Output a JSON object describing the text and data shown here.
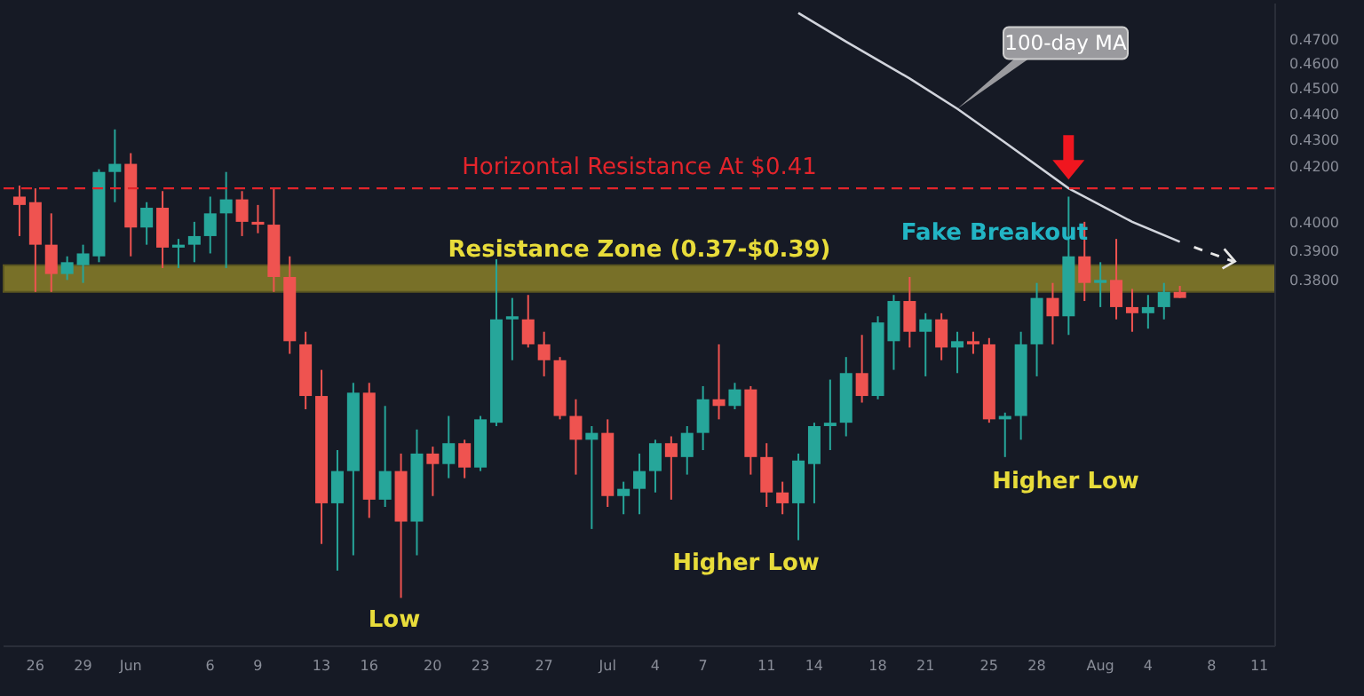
{
  "chart_data": {
    "type": "candlestick",
    "x": [
      "--05-25",
      "--05-26",
      "--05-27",
      "--05-28",
      "--05-29",
      "--05-30",
      "--05-31",
      "--06-01",
      "--06-02",
      "--06-03",
      "--06-04",
      "--06-05",
      "--06-06",
      "--06-07",
      "--06-08",
      "--06-09",
      "--06-10",
      "--06-11",
      "--06-12",
      "--06-13",
      "--06-14",
      "--06-15",
      "--06-16",
      "--06-17",
      "--06-18",
      "--06-19",
      "--06-20",
      "--06-21",
      "--06-22",
      "--06-23",
      "--06-24",
      "--06-25",
      "--06-26",
      "--06-27",
      "--06-28",
      "--06-29",
      "--06-30",
      "--07-01",
      "--07-02",
      "--07-03",
      "--07-04",
      "--07-05",
      "--07-06",
      "--07-07",
      "--07-08",
      "--07-09",
      "--07-10",
      "--07-11",
      "--07-12",
      "--07-13",
      "--07-14",
      "--07-15",
      "--07-16",
      "--07-17",
      "--07-18",
      "--07-19",
      "--07-20",
      "--07-21",
      "--07-22",
      "--07-23",
      "--07-24",
      "--07-25",
      "--07-26",
      "--07-27",
      "--07-28",
      "--07-29",
      "--07-30",
      "--07-31",
      "--08-01",
      "--08-02",
      "--08-03",
      "--08-04",
      "--08-05",
      "--08-06"
    ],
    "ohlc": [
      [
        0.409,
        0.413,
        0.395,
        0.406
      ],
      [
        0.407,
        0.412,
        0.376,
        0.392
      ],
      [
        0.392,
        0.403,
        0.376,
        0.382
      ],
      [
        0.382,
        0.388,
        0.38,
        0.386
      ],
      [
        0.385,
        0.392,
        0.379,
        0.389
      ],
      [
        0.388,
        0.419,
        0.386,
        0.418
      ],
      [
        0.418,
        0.434,
        0.407,
        0.421
      ],
      [
        0.421,
        0.425,
        0.388,
        0.398
      ],
      [
        0.398,
        0.407,
        0.392,
        0.405
      ],
      [
        0.405,
        0.411,
        0.384,
        0.391
      ],
      [
        0.391,
        0.394,
        0.384,
        0.392
      ],
      [
        0.392,
        0.4,
        0.386,
        0.395
      ],
      [
        0.395,
        0.409,
        0.389,
        0.403
      ],
      [
        0.403,
        0.418,
        0.384,
        0.408
      ],
      [
        0.408,
        0.411,
        0.395,
        0.4
      ],
      [
        0.4,
        0.406,
        0.396,
        0.399
      ],
      [
        0.399,
        0.412,
        0.376,
        0.381
      ],
      [
        0.381,
        0.388,
        0.356,
        0.36
      ],
      [
        0.359,
        0.363,
        0.339,
        0.343
      ],
      [
        0.343,
        0.351,
        0.301,
        0.312
      ],
      [
        0.312,
        0.327,
        0.294,
        0.321
      ],
      [
        0.321,
        0.347,
        0.298,
        0.344
      ],
      [
        0.344,
        0.347,
        0.308,
        0.313
      ],
      [
        0.313,
        0.34,
        0.311,
        0.321
      ],
      [
        0.321,
        0.326,
        0.287,
        0.307
      ],
      [
        0.307,
        0.333,
        0.298,
        0.326
      ],
      [
        0.326,
        0.328,
        0.314,
        0.323
      ],
      [
        0.323,
        0.337,
        0.319,
        0.329
      ],
      [
        0.329,
        0.33,
        0.319,
        0.322
      ],
      [
        0.322,
        0.337,
        0.321,
        0.336
      ],
      [
        0.335,
        0.387,
        0.334,
        0.367
      ],
      [
        0.367,
        0.374,
        0.354,
        0.368
      ],
      [
        0.367,
        0.375,
        0.358,
        0.359
      ],
      [
        0.359,
        0.363,
        0.349,
        0.354
      ],
      [
        0.354,
        0.355,
        0.336,
        0.337
      ],
      [
        0.337,
        0.342,
        0.32,
        0.33
      ],
      [
        0.33,
        0.334,
        0.305,
        0.332
      ],
      [
        0.332,
        0.336,
        0.311,
        0.314
      ],
      [
        0.314,
        0.318,
        0.309,
        0.316
      ],
      [
        0.316,
        0.326,
        0.309,
        0.321
      ],
      [
        0.321,
        0.33,
        0.315,
        0.329
      ],
      [
        0.329,
        0.331,
        0.313,
        0.325
      ],
      [
        0.325,
        0.334,
        0.32,
        0.332
      ],
      [
        0.332,
        0.346,
        0.327,
        0.342
      ],
      [
        0.342,
        0.359,
        0.336,
        0.34
      ],
      [
        0.34,
        0.347,
        0.339,
        0.345
      ],
      [
        0.345,
        0.346,
        0.32,
        0.325
      ],
      [
        0.325,
        0.329,
        0.311,
        0.315
      ],
      [
        0.315,
        0.318,
        0.309,
        0.312
      ],
      [
        0.312,
        0.326,
        0.302,
        0.324
      ],
      [
        0.323,
        0.335,
        0.312,
        0.334
      ],
      [
        0.334,
        0.348,
        0.327,
        0.335
      ],
      [
        0.335,
        0.355,
        0.331,
        0.35
      ],
      [
        0.35,
        0.362,
        0.341,
        0.343
      ],
      [
        0.343,
        0.368,
        0.342,
        0.366
      ],
      [
        0.36,
        0.375,
        0.351,
        0.373
      ],
      [
        0.373,
        0.381,
        0.358,
        0.363
      ],
      [
        0.363,
        0.369,
        0.349,
        0.367
      ],
      [
        0.367,
        0.369,
        0.354,
        0.358
      ],
      [
        0.358,
        0.363,
        0.35,
        0.36
      ],
      [
        0.36,
        0.363,
        0.356,
        0.359
      ],
      [
        0.359,
        0.361,
        0.335,
        0.336
      ],
      [
        0.336,
        0.338,
        0.325,
        0.337
      ],
      [
        0.337,
        0.363,
        0.33,
        0.359
      ],
      [
        0.359,
        0.379,
        0.349,
        0.374
      ],
      [
        0.374,
        0.379,
        0.359,
        0.368
      ],
      [
        0.368,
        0.409,
        0.362,
        0.388
      ],
      [
        0.388,
        0.4,
        0.373,
        0.379
      ],
      [
        0.379,
        0.386,
        0.371,
        0.38
      ],
      [
        0.38,
        0.394,
        0.367,
        0.371
      ],
      [
        0.371,
        0.377,
        0.363,
        0.369
      ],
      [
        0.369,
        0.375,
        0.364,
        0.371
      ],
      [
        0.371,
        0.379,
        0.367,
        0.376
      ],
      [
        0.376,
        0.378,
        0.374,
        0.374
      ]
    ],
    "colors": [
      "#ef5350",
      "#ef5350",
      "#ef5350",
      "#26a69a",
      "#26a69a",
      "#26a69a",
      "#26a69a",
      "#ef5350",
      "#26a69a",
      "#ef5350",
      "#26a69a",
      "#26a69a",
      "#26a69a",
      "#26a69a",
      "#ef5350",
      "#ef5350",
      "#ef5350",
      "#ef5350",
      "#ef5350",
      "#ef5350",
      "#26a69a",
      "#26a69a",
      "#ef5350",
      "#26a69a",
      "#ef5350",
      "#26a69a",
      "#ef5350",
      "#26a69a",
      "#ef5350",
      "#26a69a",
      "#26a69a",
      "#26a69a",
      "#ef5350",
      "#ef5350",
      "#ef5350",
      "#ef5350",
      "#26a69a",
      "#ef5350",
      "#26a69a",
      "#26a69a",
      "#26a69a",
      "#ef5350",
      "#26a69a",
      "#26a69a",
      "#ef5350",
      "#26a69a",
      "#ef5350",
      "#ef5350",
      "#ef5350",
      "#26a69a",
      "#26a69a",
      "#26a69a",
      "#26a69a",
      "#ef5350",
      "#26a69a",
      "#26a69a",
      "#ef5350",
      "#26a69a",
      "#ef5350",
      "#26a69a",
      "#ef5350",
      "#ef5350",
      "#26a69a",
      "#26a69a",
      "#26a69a",
      "#ef5350",
      "#26a69a",
      "#ef5350",
      "#26a69a",
      "#ef5350",
      "#ef5350",
      "#26a69a",
      "#26a69a",
      "#ef5350"
    ],
    "series": [
      {
        "name": "100-day MA",
        "type": "line",
        "color": "#d1d4dc",
        "x": [
          "--07-13",
          "--07-16",
          "--07-20",
          "--07-23",
          "--07-26",
          "--07-30",
          "--08-03",
          "--08-06"
        ],
        "values": [
          0.481,
          0.469,
          0.454,
          0.442,
          0.429,
          0.412,
          0.4,
          0.393
        ]
      }
    ],
    "ylim": [
      0.275,
      0.485
    ],
    "yticks": [
      {
        "value": 0.47,
        "label": "0.4700"
      },
      {
        "value": 0.46,
        "label": "0.4600"
      },
      {
        "value": 0.45,
        "label": "0.4500"
      },
      {
        "value": 0.44,
        "label": "0.4400"
      },
      {
        "value": 0.43,
        "label": "0.4300"
      },
      {
        "value": 0.42,
        "label": "0.4200"
      },
      {
        "value": 0.4,
        "label": "0.4000"
      },
      {
        "value": 0.39,
        "label": "0.3900"
      },
      {
        "value": 0.38,
        "label": "0.3800"
      }
    ],
    "log": true,
    "xlim": [
      "--05-24",
      "--08-12"
    ],
    "xticks": [
      {
        "value": "--05-26",
        "label": "26"
      },
      {
        "value": "--05-29",
        "label": "29"
      },
      {
        "value": "--06-01",
        "label": "Jun"
      },
      {
        "value": "--06-06",
        "label": "6"
      },
      {
        "value": "--06-09",
        "label": "9"
      },
      {
        "value": "--06-13",
        "label": "13"
      },
      {
        "value": "--06-16",
        "label": "16"
      },
      {
        "value": "--06-20",
        "label": "20"
      },
      {
        "value": "--06-23",
        "label": "23"
      },
      {
        "value": "--06-27",
        "label": "27"
      },
      {
        "value": "--07-01",
        "label": "Jul"
      },
      {
        "value": "--07-04",
        "label": "4"
      },
      {
        "value": "--07-07",
        "label": "7"
      },
      {
        "value": "--07-11",
        "label": "11"
      },
      {
        "value": "--07-14",
        "label": "14"
      },
      {
        "value": "--07-18",
        "label": "18"
      },
      {
        "value": "--07-21",
        "label": "21"
      },
      {
        "value": "--07-25",
        "label": "25"
      },
      {
        "value": "--07-28",
        "label": "28"
      },
      {
        "value": "--08-01",
        "label": "Aug"
      },
      {
        "value": "--08-04",
        "label": "4"
      },
      {
        "value": "--08-08",
        "label": "8"
      },
      {
        "value": "--08-11",
        "label": "11"
      }
    ],
    "ref_lines": [
      {
        "axis": "y",
        "value": 0.412,
        "label": "Horizontal Resistance At $0.41",
        "color": "#e3242b",
        "line_style": "dashed"
      }
    ],
    "bands": [
      {
        "axis": "y",
        "from": 0.376,
        "to": 0.385,
        "label": "Resistance Zone (0.37-$0.39)",
        "color": "#8a8029"
      }
    ],
    "annotations": [
      "Fake Breakout",
      "Low",
      "Higher Low",
      "Higher Low"
    ],
    "grid": false,
    "legend": false
  }
}
